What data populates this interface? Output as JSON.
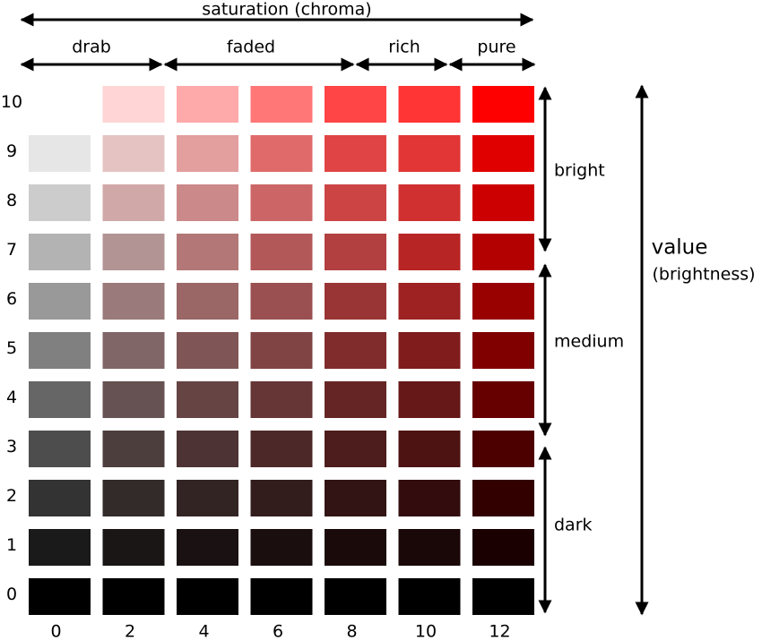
{
  "header": {
    "title": "saturation (chroma)",
    "groups": [
      "drab",
      "faded",
      "rich",
      "pure"
    ]
  },
  "side": {
    "title": "value",
    "subtitle": "(brightness)",
    "bands": [
      "bright",
      "medium",
      "dark"
    ]
  },
  "grid": {
    "row_labels": [
      "10",
      "9",
      "8",
      "7",
      "6",
      "5",
      "4",
      "3",
      "2",
      "1",
      "0"
    ],
    "column_labels": [
      "0",
      "2",
      "4",
      "6",
      "8",
      "10",
      "12"
    ],
    "colors": [
      [
        null,
        "#ffd5d5",
        "#ffaaaa",
        "#ff7777",
        "#ff4545",
        "#ff3434",
        "#ff0000"
      ],
      [
        "#e6e6e6",
        "#e6c3c3",
        "#e39e9e",
        "#e06a6a",
        "#e04444",
        "#e23535",
        "#e00000"
      ],
      [
        "#cccccc",
        "#d0a8a8",
        "#cc8989",
        "#cc6666",
        "#cc4444",
        "#d03030",
        "#cc0000"
      ],
      [
        "#b3b3b3",
        "#b39494",
        "#b37777",
        "#b35858",
        "#b34040",
        "#b82525",
        "#b30000"
      ],
      [
        "#999999",
        "#9a7a7a",
        "#9a6666",
        "#9a5050",
        "#9a3535",
        "#9e2222",
        "#990000"
      ],
      [
        "#808080",
        "#806666",
        "#805555",
        "#804444",
        "#802c2c",
        "#801c1c",
        "#800000"
      ],
      [
        "#666666",
        "#665252",
        "#664444",
        "#663636",
        "#662525",
        "#661818",
        "#660000"
      ],
      [
        "#4d4d4d",
        "#4d3e3e",
        "#4d3333",
        "#4d2828",
        "#4d1c1c",
        "#4d1212",
        "#4d0000"
      ],
      [
        "#333333",
        "#332a2a",
        "#332424",
        "#331c1c",
        "#331414",
        "#330d0d",
        "#330000"
      ],
      [
        "#1a1a1a",
        "#1a1616",
        "#1a1212",
        "#1a0e0e",
        "#1a0a0a",
        "#1a0808",
        "#1a0000"
      ],
      [
        "#000000",
        "#000000",
        "#000000",
        "#000000",
        "#000000",
        "#000000",
        "#000000"
      ]
    ]
  }
}
